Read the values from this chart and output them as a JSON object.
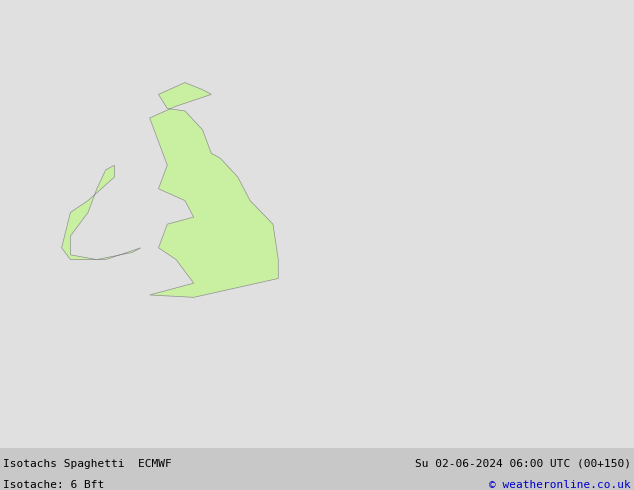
{
  "title_left_line1": "Isotachs Spaghetti  ECMWF",
  "title_left_line2": "Isotache: 6 Bft",
  "title_right_line1": "Su 02-06-2024 06:00 UTC (00+150)",
  "title_right_line2": "© weatheronline.co.uk",
  "bg_color": "#e0e0e0",
  "land_color": "#c8f0a0",
  "sea_color": "#e0e0e0",
  "border_color": "#909090",
  "footer_bg": "#c8c8c8",
  "footer_text_color": "#000000",
  "footer_right_color": "#0000cc",
  "lon_min": -14.0,
  "lon_max": 22.0,
  "lat_min": 43.5,
  "lat_max": 62.5,
  "fig_width": 6.34,
  "fig_height": 4.9,
  "dpi": 100,
  "spaghetti_colors": [
    "#606060",
    "#606060",
    "#606060",
    "#606060",
    "#606060",
    "#606060",
    "#606060",
    "#606060",
    "#606060",
    "#606060",
    "#606060",
    "#606060",
    "#606060",
    "#606060",
    "#606060",
    "#ff8800",
    "#ff8800",
    "#ff0000",
    "#ff4444",
    "#0088ff",
    "#00aaff",
    "#00ccff",
    "#00ffff",
    "#ff00ff",
    "#cc00cc",
    "#9900cc",
    "#6600cc",
    "#00cc00",
    "#009900",
    "#cccc00",
    "#ffff00",
    "#aaff00",
    "#ff6600",
    "#ff9900",
    "#0000cc",
    "#000099",
    "#009999",
    "#00cccc",
    "#cc0066",
    "#ff0066",
    "#ff99ff",
    "#cc99ff"
  ]
}
